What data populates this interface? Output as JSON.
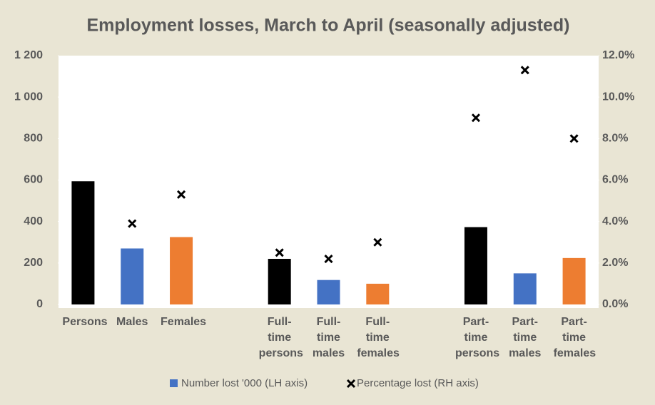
{
  "chart_data": {
    "type": "bar",
    "title": "Employment losses, March to April (seasonally adjusted)",
    "categories": [
      "Persons",
      "Males",
      "Females",
      null,
      "Full-time persons",
      "Full-time males",
      "Full-time females",
      null,
      "Part-time persons",
      "Part-time males",
      "Part-time females"
    ],
    "series": [
      {
        "name": "Number lost '000 (LH axis)",
        "color": "#4472c4",
        "colors": [
          "#000000",
          "#4472c4",
          "#ed7d31",
          null,
          "#000000",
          "#4472c4",
          "#ed7d31",
          null,
          "#000000",
          "#4472c4",
          "#ed7d31"
        ],
        "values": [
          594,
          270,
          325,
          null,
          220,
          118,
          100,
          null,
          373,
          150,
          224
        ]
      },
      {
        "name": "Percentage lost (RH axis)",
        "type": "scatter",
        "axis": "y2",
        "color": "#000000",
        "values": [
          4.6,
          3.9,
          5.3,
          null,
          2.5,
          2.2,
          3.0,
          null,
          9.0,
          11.3,
          8.0
        ]
      }
    ],
    "ylim": [
      0,
      1200
    ],
    "yticks": [
      0,
      200,
      400,
      600,
      800,
      {
        "value": 1000,
        "label": "1 000"
      },
      {
        "value": 1200,
        "label": "1 200"
      }
    ],
    "y2lim": [
      0,
      12
    ],
    "y2ticks": [
      {
        "value": 0,
        "label": "0.0%"
      },
      {
        "value": 2,
        "label": "2.0%"
      },
      {
        "value": 4,
        "label": "4.0%"
      },
      {
        "value": 6,
        "label": "6.0%"
      },
      {
        "value": 8,
        "label": "8.0%"
      },
      {
        "value": 10,
        "label": "10.0%"
      },
      {
        "value": 12,
        "label": "12.0%"
      }
    ],
    "legend": "bottom"
  }
}
